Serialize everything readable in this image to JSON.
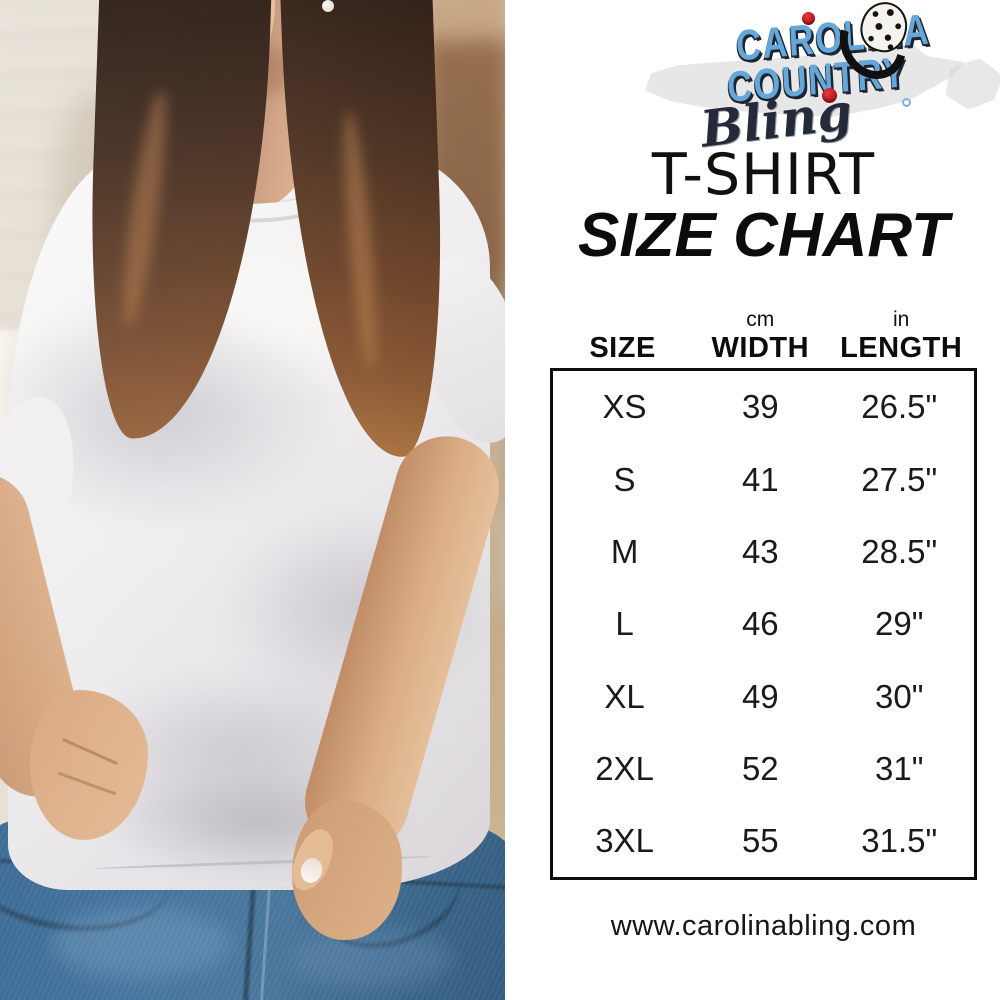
{
  "brand": {
    "line1": "CAROLINA",
    "line2": "COUNTRY",
    "line3": "Bling",
    "colors": {
      "blue": "#64a7d8",
      "navy": "#1d2432",
      "red": "#b5121f",
      "map_gray": "#cfcfcf"
    }
  },
  "heading": {
    "line1": "T-SHIRT",
    "line2": "SIZE CHART"
  },
  "size_chart": {
    "columns": [
      {
        "unit": "",
        "label": "SIZE"
      },
      {
        "unit": "cm",
        "label": "WIDTH"
      },
      {
        "unit": "in",
        "label": "LENGTH"
      }
    ],
    "rows": [
      [
        "XS",
        "39",
        "26.5\""
      ],
      [
        "S",
        "41",
        "27.5\""
      ],
      [
        "M",
        "43",
        "28.5\""
      ],
      [
        "L",
        "46",
        "29\""
      ],
      [
        "XL",
        "49",
        "30\""
      ],
      [
        "2XL",
        "52",
        "31\""
      ],
      [
        "3XL",
        "55",
        "31.5\""
      ]
    ],
    "border_color": "#0d0d0d"
  },
  "footer": {
    "website": "www.carolinabling.com"
  }
}
